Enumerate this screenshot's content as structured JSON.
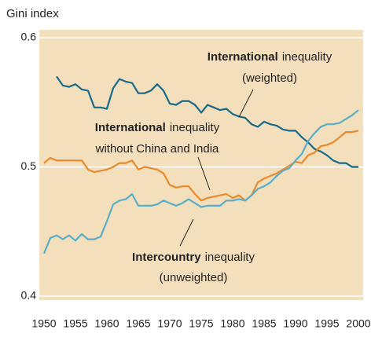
{
  "chart_data": {
    "type": "line",
    "y_label": "Gini index",
    "x": [
      1950,
      1951,
      1952,
      1953,
      1954,
      1955,
      1956,
      1957,
      1958,
      1959,
      1960,
      1961,
      1962,
      1963,
      1964,
      1965,
      1966,
      1967,
      1968,
      1969,
      1970,
      1971,
      1972,
      1973,
      1974,
      1975,
      1976,
      1977,
      1978,
      1979,
      1980,
      1981,
      1982,
      1983,
      1984,
      1985,
      1986,
      1987,
      1988,
      1989,
      1990,
      1991,
      1992,
      1993,
      1994,
      1995,
      1996,
      1997,
      1998,
      1999,
      2000
    ],
    "series": [
      {
        "color": "#17698a",
        "values": [
          null,
          null,
          0.57,
          0.563,
          0.562,
          0.564,
          0.56,
          0.559,
          0.546,
          0.546,
          0.545,
          0.561,
          0.568,
          0.566,
          0.565,
          0.557,
          0.557,
          0.559,
          0.564,
          0.559,
          0.549,
          0.548,
          0.551,
          0.551,
          0.548,
          0.542,
          0.548,
          0.546,
          0.544,
          0.545,
          0.541,
          0.539,
          0.538,
          0.533,
          0.531,
          0.535,
          0.533,
          0.532,
          0.529,
          0.528,
          0.528,
          0.523,
          0.519,
          0.514,
          0.512,
          0.509,
          0.505,
          0.503,
          0.503,
          0.5,
          0.5
        ]
      },
      {
        "color": "#e88a2c",
        "values": [
          0.503,
          0.507,
          0.505,
          0.505,
          0.505,
          0.505,
          0.505,
          0.498,
          0.496,
          0.497,
          0.498,
          0.5,
          0.503,
          0.503,
          0.505,
          0.498,
          0.5,
          0.499,
          0.498,
          0.495,
          0.486,
          0.484,
          0.485,
          0.485,
          0.479,
          0.474,
          0.476,
          0.477,
          0.478,
          0.479,
          0.476,
          0.478,
          0.474,
          0.478,
          0.488,
          0.491,
          0.493,
          0.495,
          0.498,
          0.501,
          0.504,
          0.503,
          0.509,
          0.511,
          0.516,
          0.517,
          0.519,
          0.523,
          0.527,
          0.527,
          0.528
        ]
      },
      {
        "color": "#5aadc8",
        "values": [
          0.433,
          0.445,
          0.447,
          0.444,
          0.447,
          0.443,
          0.448,
          0.444,
          0.444,
          0.446,
          0.458,
          0.471,
          0.474,
          0.475,
          0.479,
          0.47,
          0.47,
          0.47,
          0.471,
          0.474,
          0.472,
          0.47,
          0.472,
          0.475,
          0.472,
          0.469,
          0.47,
          0.47,
          0.47,
          0.474,
          0.474,
          0.475,
          0.474,
          0.478,
          0.483,
          0.485,
          0.488,
          0.493,
          0.497,
          0.499,
          0.505,
          0.51,
          0.52,
          0.526,
          0.531,
          0.533,
          0.533,
          0.534,
          0.537,
          0.54,
          0.544
        ]
      }
    ],
    "xlim": [
      1950,
      2000
    ],
    "xticks": [
      1950,
      1955,
      1960,
      1965,
      1970,
      1975,
      1980,
      1985,
      1990,
      1995,
      2000
    ],
    "ylim": [
      0.4,
      0.6
    ],
    "yticks": [
      0.6,
      0.5,
      0.4
    ],
    "grid": true,
    "annotations": [
      {
        "bold": "International",
        "rest": "inequality",
        "line2": "(weighted)"
      },
      {
        "bold": "International",
        "rest": "inequality",
        "line2": "without China and India"
      },
      {
        "bold": "Intercountry",
        "rest": "inequality",
        "line2": "(unweighted)"
      }
    ]
  }
}
